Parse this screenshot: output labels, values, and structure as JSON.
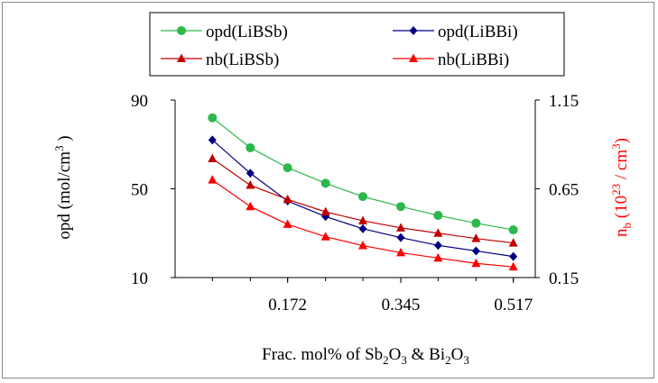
{
  "chart_data": {
    "type": "line",
    "x": [
      0.057,
      0.115,
      0.172,
      0.23,
      0.287,
      0.345,
      0.402,
      0.46,
      0.517
    ],
    "x_ticks": [
      "0.172",
      "0.345",
      "0.517"
    ],
    "x_tick_values": [
      0.172,
      0.345,
      0.517
    ],
    "xlabel": {
      "prefix": "Frac. mol% of Sb",
      "sub1": "2",
      "mid1": "O",
      "sub2": "3",
      "mid2": " & Bi",
      "sub3": "2",
      "mid3": "O",
      "sub4": "3"
    },
    "y_left": {
      "lim": [
        10,
        90
      ],
      "ticks": [
        "10",
        "50",
        "90"
      ],
      "tick_values": [
        10,
        50,
        90
      ],
      "label": {
        "prefix": "opd (mol/cm",
        "sup": "3",
        "suffix": " )"
      }
    },
    "y_right": {
      "lim": [
        0.15,
        1.15
      ],
      "ticks": [
        "0.15",
        "0.65",
        "1.15"
      ],
      "tick_values": [
        0.15,
        0.65,
        1.15
      ],
      "label": {
        "prefix": "n",
        "sub": "b",
        "mid": " (10",
        "sup1": "23",
        "mid2": " / cm",
        "sup2": "3",
        "suffix": ")"
      },
      "color": "#ff0000"
    },
    "series": [
      {
        "name": "opd(LiBSb)",
        "axis": "left",
        "color": "#2db84b",
        "marker": "circle",
        "values": [
          82,
          68.5,
          59.5,
          52.5,
          46.5,
          42,
          38,
          34.5,
          31.5
        ]
      },
      {
        "name": "opd(LiBBi)",
        "axis": "left",
        "color": "#00007f",
        "marker": "diamond",
        "values": [
          72,
          57,
          44.5,
          37.5,
          32,
          28,
          24.5,
          22,
          19.5
        ]
      },
      {
        "name": "nb(LiBSb)",
        "axis": "right",
        "color": "#c00000",
        "marker": "triangle",
        "values": [
          0.82,
          0.67,
          0.59,
          0.52,
          0.47,
          0.43,
          0.4,
          0.37,
          0.345
        ]
      },
      {
        "name": "nb(LiBBi)",
        "axis": "right",
        "color": "#ff0000",
        "marker": "triangle",
        "values": [
          0.7,
          0.55,
          0.45,
          0.38,
          0.33,
          0.29,
          0.26,
          0.23,
          0.21
        ]
      }
    ],
    "legend_position": "top",
    "grid": false
  }
}
